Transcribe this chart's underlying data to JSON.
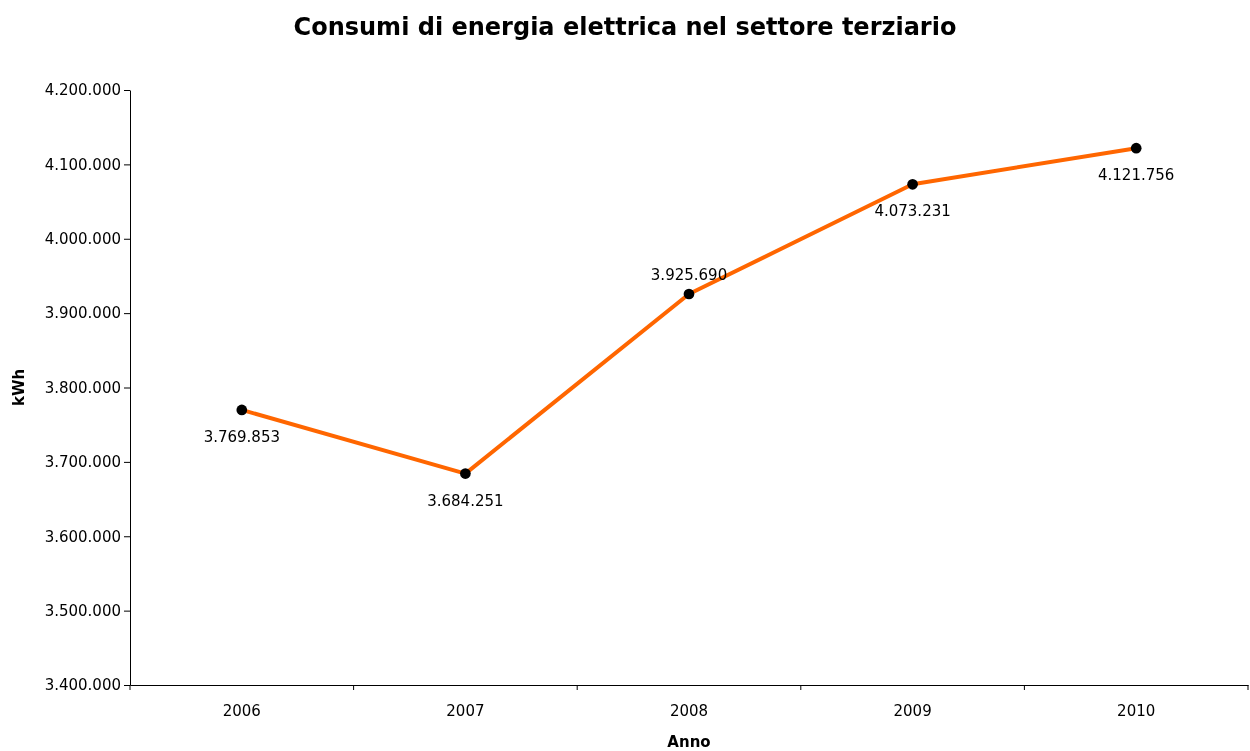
{
  "chart_data": {
    "type": "line",
    "title": "Consumi di energia elettrica nel settore terziario",
    "xlabel": "Anno",
    "ylabel": "kWh",
    "categories": [
      "2006",
      "2007",
      "2008",
      "2009",
      "2010"
    ],
    "series": [
      {
        "color": "#ff6600",
        "values": [
          3769853,
          3684251,
          3925690,
          4073231,
          4121756
        ],
        "value_labels": [
          "3.769.853",
          "3.684.251",
          "3.925.690",
          "4.073.231",
          "4.121.756"
        ]
      }
    ],
    "marker": "circle",
    "line_style": "solid",
    "ylim": [
      3400000,
      4200000
    ],
    "yticks": [
      {
        "value": 3400000,
        "label": "3.400.000"
      },
      {
        "value": 3500000,
        "label": "3.500.000"
      },
      {
        "value": 3600000,
        "label": "3.600.000"
      },
      {
        "value": 3700000,
        "label": "3.700.000"
      },
      {
        "value": 3800000,
        "label": "3.800.000"
      },
      {
        "value": 3900000,
        "label": "3.900.000"
      },
      {
        "value": 4000000,
        "label": "4.000.000"
      },
      {
        "value": 4100000,
        "label": "4.100.000"
      },
      {
        "value": 4200000,
        "label": "4.200.000"
      }
    ],
    "grid": false
  }
}
